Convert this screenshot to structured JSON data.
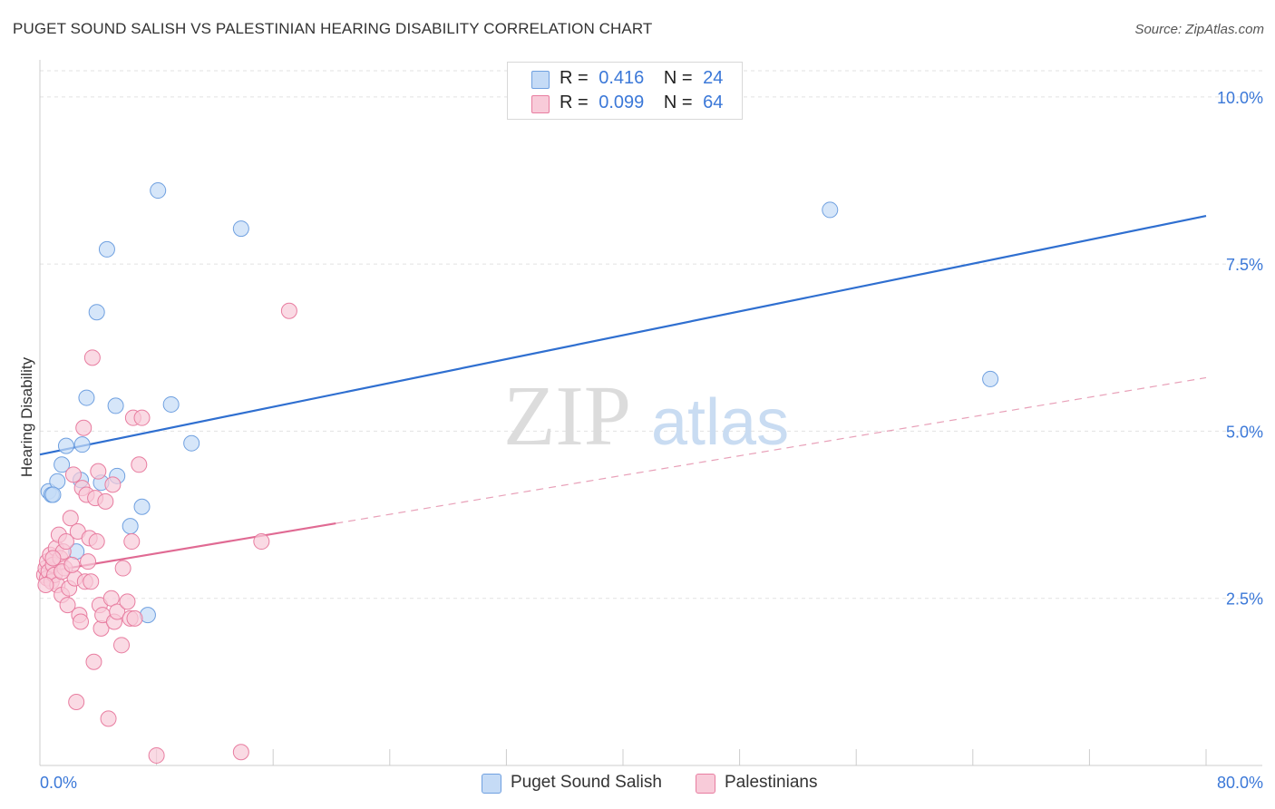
{
  "title": "PUGET SOUND SALISH VS PALESTINIAN HEARING DISABILITY CORRELATION CHART",
  "source": "Source: ZipAtlas.com",
  "legend": {
    "rows": [
      {
        "r_label": "R =",
        "r_value": "0.416",
        "n_label": "N =",
        "n_value": "24",
        "color": "#a9c8f0"
      },
      {
        "r_label": "R =",
        "r_value": "0.099",
        "n_label": "N =",
        "n_value": "64",
        "color": "#f5b8cb"
      }
    ]
  },
  "bottom_legend": {
    "items": [
      {
        "label": "Puget Sound Salish",
        "color": "#a9c8f0"
      },
      {
        "label": "Palestinians",
        "color": "#f5b8cb"
      }
    ]
  },
  "watermark": {
    "zip": "ZIP",
    "atlas": "atlas"
  },
  "chart_data": {
    "type": "scatter",
    "title": "PUGET SOUND SALISH VS PALESTINIAN HEARING DISABILITY CORRELATION CHART",
    "xlabel": "",
    "ylabel": "Hearing Disability",
    "xlim": [
      0,
      80
    ],
    "ylim": [
      0,
      10.5
    ],
    "x_tick_labels": [
      "0.0%",
      "80.0%"
    ],
    "y_ticks": [
      2.5,
      5.0,
      7.5,
      10.0
    ],
    "y_tick_labels": [
      "2.5%",
      "5.0%",
      "7.5%",
      "10.0%"
    ],
    "grid": true,
    "series": [
      {
        "name": "Puget Sound Salish",
        "color": "#6fa0e0",
        "fill": "#c5dbf6",
        "points": [
          [
            0.6,
            4.1
          ],
          [
            0.8,
            4.05
          ],
          [
            1.2,
            4.25
          ],
          [
            1.5,
            4.5
          ],
          [
            1.8,
            4.78
          ],
          [
            2.5,
            3.2
          ],
          [
            2.8,
            4.27
          ],
          [
            2.9,
            4.8
          ],
          [
            3.2,
            5.5
          ],
          [
            3.9,
            6.78
          ],
          [
            4.2,
            4.23
          ],
          [
            4.6,
            7.72
          ],
          [
            5.2,
            5.38
          ],
          [
            5.3,
            4.33
          ],
          [
            6.2,
            3.58
          ],
          [
            7.0,
            3.87
          ],
          [
            8.1,
            8.6
          ],
          [
            9.0,
            5.4
          ],
          [
            10.4,
            4.82
          ],
          [
            13.8,
            8.03
          ],
          [
            7.4,
            2.25
          ],
          [
            54.2,
            8.31
          ],
          [
            65.2,
            5.78
          ],
          [
            0.9,
            4.05
          ]
        ],
        "trend": {
          "x": [
            0,
            80
          ],
          "y": [
            4.65,
            8.22
          ],
          "style": "solid"
        }
      },
      {
        "name": "Palestinians",
        "color": "#e87da0",
        "fill": "#f8cbd9",
        "points": [
          [
            0.3,
            2.85
          ],
          [
            0.4,
            2.95
          ],
          [
            0.5,
            3.05
          ],
          [
            0.5,
            2.8
          ],
          [
            0.6,
            2.9
          ],
          [
            0.7,
            3.15
          ],
          [
            0.8,
            2.75
          ],
          [
            0.9,
            3.0
          ],
          [
            1.0,
            2.85
          ],
          [
            1.1,
            3.25
          ],
          [
            1.2,
            2.7
          ],
          [
            1.3,
            3.45
          ],
          [
            1.4,
            3.1
          ],
          [
            1.5,
            2.55
          ],
          [
            1.6,
            3.2
          ],
          [
            1.7,
            2.95
          ],
          [
            1.8,
            3.35
          ],
          [
            1.9,
            2.4
          ],
          [
            2.0,
            2.65
          ],
          [
            2.1,
            3.7
          ],
          [
            2.3,
            4.35
          ],
          [
            2.4,
            2.8
          ],
          [
            2.5,
            0.95
          ],
          [
            2.6,
            3.5
          ],
          [
            2.7,
            2.25
          ],
          [
            2.8,
            2.15
          ],
          [
            2.9,
            4.15
          ],
          [
            3.0,
            5.05
          ],
          [
            3.1,
            2.75
          ],
          [
            3.2,
            4.05
          ],
          [
            3.3,
            3.05
          ],
          [
            3.4,
            3.4
          ],
          [
            3.5,
            2.75
          ],
          [
            3.6,
            6.1
          ],
          [
            3.7,
            1.55
          ],
          [
            3.8,
            4.0
          ],
          [
            3.9,
            3.35
          ],
          [
            4.0,
            4.4
          ],
          [
            4.1,
            2.4
          ],
          [
            4.2,
            2.05
          ],
          [
            4.3,
            2.25
          ],
          [
            4.5,
            3.95
          ],
          [
            4.7,
            0.7
          ],
          [
            4.9,
            2.5
          ],
          [
            5.0,
            4.2
          ],
          [
            5.1,
            2.15
          ],
          [
            5.3,
            2.3
          ],
          [
            5.6,
            1.8
          ],
          [
            5.7,
            2.95
          ],
          [
            6.0,
            2.45
          ],
          [
            6.2,
            2.2
          ],
          [
            6.3,
            3.35
          ],
          [
            6.4,
            5.2
          ],
          [
            6.5,
            2.2
          ],
          [
            6.8,
            4.5
          ],
          [
            7.0,
            5.2
          ],
          [
            8.0,
            0.15
          ],
          [
            13.8,
            0.2
          ],
          [
            15.2,
            3.35
          ],
          [
            17.1,
            6.8
          ],
          [
            0.4,
            2.7
          ],
          [
            1.5,
            2.9
          ],
          [
            0.9,
            3.1
          ],
          [
            2.2,
            3.0
          ]
        ],
        "trend": {
          "x": [
            0,
            80
          ],
          "y": [
            2.88,
            5.8
          ],
          "style": "solid to dashed",
          "solid_until_x": 20.3
        }
      }
    ]
  }
}
